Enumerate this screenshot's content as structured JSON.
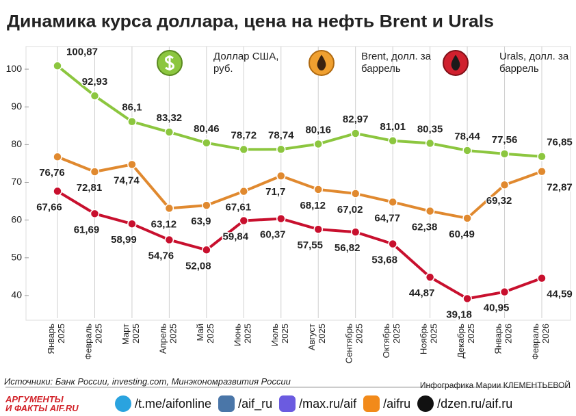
{
  "chart_data": {
    "type": "line",
    "title": "Динамика курса доллара, цена на нефть Brent и Urals",
    "categories": [
      "Январь 2025",
      "Февраль 2025",
      "Март 2025",
      "Апрель 2025",
      "Май 2025",
      "Июнь 2025",
      "Июль 2025",
      "Август 2025",
      "Сентябрь 2025",
      "Октябрь 2025",
      "Ноябрь 2025",
      "Декабрь 2025",
      "Январь 2026",
      "Февраль 2026"
    ],
    "series": [
      {
        "name": "Доллар США, руб.",
        "color": "#8cc63f",
        "values": [
          100.87,
          92.93,
          86.1,
          83.32,
          80.46,
          78.72,
          78.74,
          80.16,
          82.97,
          81.01,
          80.35,
          78.44,
          77.56,
          76.85
        ],
        "value_labels": [
          "100,87",
          "92,93",
          "86,1",
          "83,32",
          "80,46",
          "78,72",
          "78,74",
          "80,16",
          "82,97",
          "81,01",
          "80,35",
          "78,44",
          "77,56",
          "76,85"
        ]
      },
      {
        "name": "Brent, долл. за баррель",
        "color": "#e0892f",
        "values": [
          76.76,
          72.81,
          74.74,
          63.12,
          63.9,
          67.61,
          71.7,
          68.12,
          67.02,
          64.77,
          62.38,
          60.49,
          69.32,
          72.87
        ],
        "value_labels": [
          "76,76",
          "72,81",
          "74,74",
          "63,12",
          "63,9",
          "67,61",
          "71,7",
          "68,12",
          "67,02",
          "64,77",
          "62,38",
          "60,49",
          "69,32",
          "72,87"
        ]
      },
      {
        "name": "Urals, долл. за баррель",
        "color": "#c8102e",
        "values": [
          67.66,
          61.69,
          58.99,
          54.76,
          52.08,
          59.84,
          60.37,
          57.55,
          56.82,
          53.68,
          44.87,
          39.18,
          40.95,
          44.59
        ],
        "value_labels": [
          "67,66",
          "61,69",
          "58,99",
          "54,76",
          "52,08",
          "59,84",
          "60,37",
          "57,55",
          "56,82",
          "53,68",
          "44,87",
          "39,18",
          "40,95",
          "44,59"
        ]
      }
    ],
    "ylim": [
      34,
      106
    ],
    "yticks": [
      40,
      50,
      60,
      70,
      80,
      90,
      100
    ],
    "grid": true
  },
  "source": "Источники: Банк России, investing.com, Минэкономразвития России",
  "credit": "Инфографика Марии КЛЕМЕНТЬЕВОЙ",
  "footer": {
    "logo": [
      "АРГУМЕНТЫ",
      "И ФАКТЫ AIF.RU"
    ],
    "links": [
      "/t.me/aifonline",
      "/aif_ru",
      "/max.ru/aif",
      "/aifru",
      "/dzen.ru/aif.ru"
    ]
  }
}
